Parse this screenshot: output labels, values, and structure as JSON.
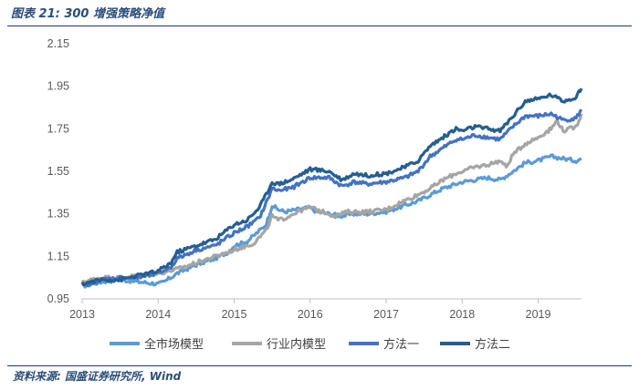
{
  "header": {
    "title": "图表 21:  300 增强策略净值"
  },
  "footer": {
    "source": "资料来源:  国盛证券研究所, Wind"
  },
  "chart_data": {
    "type": "line",
    "xlim": [
      2013.0,
      2019.57
    ],
    "ylim": [
      0.95,
      2.15
    ],
    "y_ticks": [
      "0.95",
      "1.15",
      "1.35",
      "1.55",
      "1.75",
      "1.95",
      "2.15"
    ],
    "x_ticks": [
      "2013",
      "2014",
      "2015",
      "2016",
      "2017",
      "2018",
      "2019"
    ],
    "grid": false,
    "legend_position": "bottom",
    "series": [
      {
        "name": "全市场模型",
        "color": "#5b9bd5",
        "points": [
          [
            2013.0,
            1.01
          ],
          [
            2013.25,
            1.03
          ],
          [
            2013.5,
            1.04
          ],
          [
            2013.75,
            1.03
          ],
          [
            2014.0,
            1.02
          ],
          [
            2014.08,
            1.03
          ],
          [
            2014.25,
            1.07
          ],
          [
            2014.5,
            1.11
          ],
          [
            2014.75,
            1.14
          ],
          [
            2014.92,
            1.17
          ],
          [
            2015.0,
            1.2
          ],
          [
            2015.17,
            1.22
          ],
          [
            2015.33,
            1.27
          ],
          [
            2015.42,
            1.3
          ],
          [
            2015.5,
            1.39
          ],
          [
            2015.58,
            1.37
          ],
          [
            2015.67,
            1.36
          ],
          [
            2015.83,
            1.37
          ],
          [
            2016.0,
            1.38
          ],
          [
            2016.08,
            1.36
          ],
          [
            2016.25,
            1.35
          ],
          [
            2016.42,
            1.34
          ],
          [
            2016.58,
            1.35
          ],
          [
            2016.75,
            1.35
          ],
          [
            2017.0,
            1.36
          ],
          [
            2017.25,
            1.39
          ],
          [
            2017.42,
            1.41
          ],
          [
            2017.58,
            1.44
          ],
          [
            2017.75,
            1.47
          ],
          [
            2017.92,
            1.49
          ],
          [
            2018.0,
            1.5
          ],
          [
            2018.17,
            1.51
          ],
          [
            2018.33,
            1.52
          ],
          [
            2018.5,
            1.51
          ],
          [
            2018.67,
            1.55
          ],
          [
            2018.83,
            1.59
          ],
          [
            2019.0,
            1.6
          ],
          [
            2019.17,
            1.62
          ],
          [
            2019.33,
            1.61
          ],
          [
            2019.5,
            1.6
          ],
          [
            2019.57,
            1.61
          ]
        ]
      },
      {
        "name": "行业内模型",
        "color": "#a5a5a5",
        "points": [
          [
            2013.0,
            1.03
          ],
          [
            2013.25,
            1.05
          ],
          [
            2013.5,
            1.05
          ],
          [
            2013.75,
            1.06
          ],
          [
            2014.0,
            1.07
          ],
          [
            2014.25,
            1.09
          ],
          [
            2014.5,
            1.12
          ],
          [
            2014.75,
            1.15
          ],
          [
            2015.0,
            1.18
          ],
          [
            2015.25,
            1.21
          ],
          [
            2015.42,
            1.27
          ],
          [
            2015.5,
            1.34
          ],
          [
            2015.58,
            1.32
          ],
          [
            2015.67,
            1.33
          ],
          [
            2015.83,
            1.36
          ],
          [
            2016.0,
            1.38
          ],
          [
            2016.17,
            1.36
          ],
          [
            2016.33,
            1.34
          ],
          [
            2016.5,
            1.36
          ],
          [
            2016.75,
            1.36
          ],
          [
            2017.0,
            1.37
          ],
          [
            2017.17,
            1.4
          ],
          [
            2017.42,
            1.44
          ],
          [
            2017.58,
            1.47
          ],
          [
            2017.75,
            1.51
          ],
          [
            2017.92,
            1.54
          ],
          [
            2018.0,
            1.55
          ],
          [
            2018.17,
            1.57
          ],
          [
            2018.33,
            1.58
          ],
          [
            2018.5,
            1.6
          ],
          [
            2018.58,
            1.57
          ],
          [
            2018.67,
            1.63
          ],
          [
            2018.83,
            1.68
          ],
          [
            2019.0,
            1.71
          ],
          [
            2019.17,
            1.75
          ],
          [
            2019.25,
            1.79
          ],
          [
            2019.33,
            1.74
          ],
          [
            2019.5,
            1.76
          ],
          [
            2019.57,
            1.82
          ]
        ]
      },
      {
        "name": "方法一",
        "color": "#4472c4",
        "points": [
          [
            2013.0,
            1.01
          ],
          [
            2013.25,
            1.04
          ],
          [
            2013.5,
            1.05
          ],
          [
            2013.75,
            1.05
          ],
          [
            2014.0,
            1.07
          ],
          [
            2014.17,
            1.1
          ],
          [
            2014.25,
            1.14
          ],
          [
            2014.5,
            1.18
          ],
          [
            2014.75,
            1.2
          ],
          [
            2015.0,
            1.26
          ],
          [
            2015.17,
            1.29
          ],
          [
            2015.33,
            1.33
          ],
          [
            2015.42,
            1.4
          ],
          [
            2015.5,
            1.47
          ],
          [
            2015.58,
            1.46
          ],
          [
            2015.75,
            1.47
          ],
          [
            2016.0,
            1.52
          ],
          [
            2016.25,
            1.52
          ],
          [
            2016.42,
            1.48
          ],
          [
            2016.58,
            1.5
          ],
          [
            2016.75,
            1.49
          ],
          [
            2017.0,
            1.5
          ],
          [
            2017.25,
            1.52
          ],
          [
            2017.42,
            1.55
          ],
          [
            2017.58,
            1.62
          ],
          [
            2017.75,
            1.66
          ],
          [
            2017.92,
            1.7
          ],
          [
            2018.0,
            1.7
          ],
          [
            2018.17,
            1.72
          ],
          [
            2018.33,
            1.71
          ],
          [
            2018.5,
            1.7
          ],
          [
            2018.67,
            1.76
          ],
          [
            2018.83,
            1.81
          ],
          [
            2019.0,
            1.81
          ],
          [
            2019.17,
            1.82
          ],
          [
            2019.33,
            1.79
          ],
          [
            2019.5,
            1.8
          ],
          [
            2019.57,
            1.84
          ]
        ]
      },
      {
        "name": "方法二",
        "color": "#255e91",
        "points": [
          [
            2013.0,
            1.02
          ],
          [
            2013.25,
            1.04
          ],
          [
            2013.5,
            1.04
          ],
          [
            2013.75,
            1.06
          ],
          [
            2014.0,
            1.08
          ],
          [
            2014.17,
            1.12
          ],
          [
            2014.25,
            1.17
          ],
          [
            2014.5,
            1.2
          ],
          [
            2014.75,
            1.23
          ],
          [
            2015.0,
            1.3
          ],
          [
            2015.17,
            1.32
          ],
          [
            2015.33,
            1.38
          ],
          [
            2015.42,
            1.44
          ],
          [
            2015.5,
            1.5
          ],
          [
            2015.58,
            1.49
          ],
          [
            2015.75,
            1.51
          ],
          [
            2016.0,
            1.56
          ],
          [
            2016.25,
            1.55
          ],
          [
            2016.42,
            1.51
          ],
          [
            2016.58,
            1.54
          ],
          [
            2016.75,
            1.53
          ],
          [
            2017.0,
            1.54
          ],
          [
            2017.25,
            1.57
          ],
          [
            2017.42,
            1.6
          ],
          [
            2017.58,
            1.67
          ],
          [
            2017.75,
            1.71
          ],
          [
            2017.92,
            1.75
          ],
          [
            2018.0,
            1.74
          ],
          [
            2018.17,
            1.76
          ],
          [
            2018.33,
            1.75
          ],
          [
            2018.5,
            1.74
          ],
          [
            2018.67,
            1.81
          ],
          [
            2018.83,
            1.88
          ],
          [
            2019.0,
            1.89
          ],
          [
            2019.17,
            1.91
          ],
          [
            2019.33,
            1.88
          ],
          [
            2019.5,
            1.9
          ],
          [
            2019.57,
            1.94
          ]
        ]
      }
    ]
  }
}
